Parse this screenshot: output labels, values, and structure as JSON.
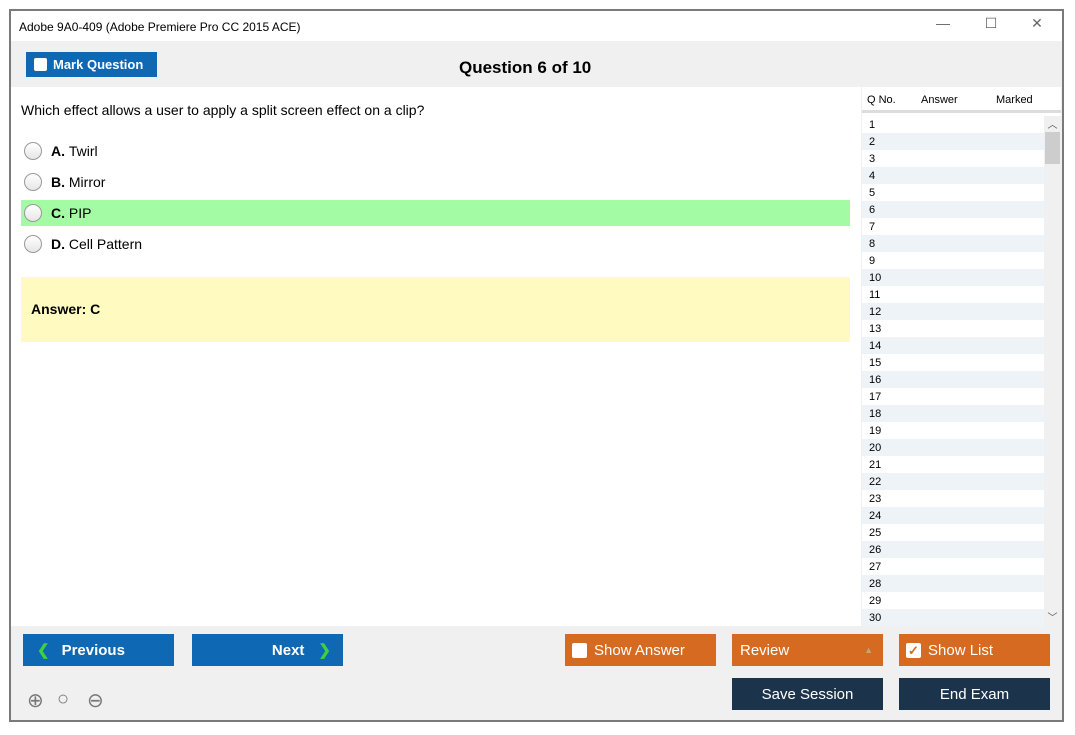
{
  "window": {
    "title": "Adobe 9A0-409 (Adobe Premiere Pro CC 2015 ACE)",
    "minimize": "—",
    "maximize": "☐",
    "close": "✕"
  },
  "toolbar": {
    "mark_label": "Mark Question",
    "question_counter": "Question 6 of 10"
  },
  "question": {
    "text": "Which effect allows a user to apply a split screen effect on a clip?",
    "options": [
      {
        "letter": "A.",
        "text": "Twirl"
      },
      {
        "letter": "B.",
        "text": "Mirror"
      },
      {
        "letter": "C.",
        "text": "PIP"
      },
      {
        "letter": "D.",
        "text": "Cell Pattern"
      }
    ],
    "highlighted": "C",
    "answer": "Answer: C"
  },
  "sidebar": {
    "headers": [
      "Q No.",
      "Answer",
      "Marked"
    ],
    "rows": [
      "1",
      "2",
      "3",
      "4",
      "5",
      "6",
      "7",
      "8",
      "9",
      "10",
      "11",
      "12",
      "13",
      "14",
      "15",
      "16",
      "17",
      "18",
      "19",
      "20",
      "21",
      "22",
      "23",
      "24",
      "25",
      "26",
      "27",
      "28",
      "29",
      "30"
    ]
  },
  "footer": {
    "previous": "Previous",
    "next": "Next",
    "show_answer": "Show Answer",
    "review": "Review",
    "show_list": "Show List",
    "save_session": "Save Session",
    "end_exam": "End Exam",
    "show_list_checked": true,
    "show_answer_checked": false
  },
  "colors": {
    "blue": "#0e68b3",
    "orange": "#d56a20",
    "dark": "#1b344b",
    "correct": "#a3fca3",
    "answer_bg": "#fffac0"
  }
}
